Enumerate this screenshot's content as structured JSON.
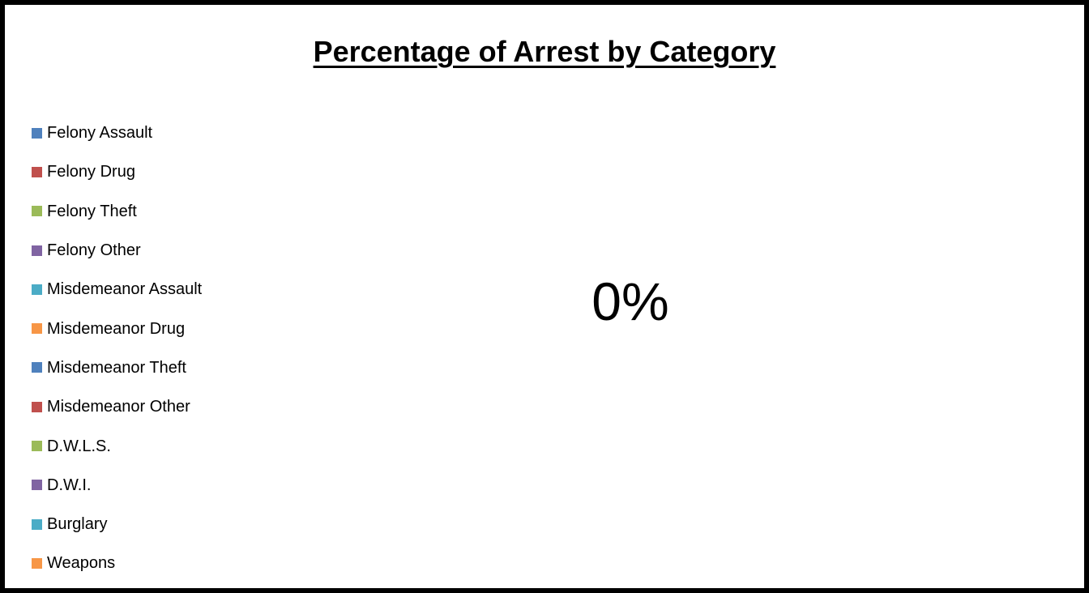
{
  "chart_data": {
    "type": "pie",
    "title": "Percentage of Arrest by Category",
    "categories": [
      "Felony Assault",
      "Felony Drug",
      "Felony Theft",
      "Felony Other",
      "Misdemeanor Assault",
      "Misdemeanor Drug",
      "Misdemeanor Theft",
      "Misdemeanor Other",
      "D.W.L.S.",
      "D.W.I.",
      "Burglary",
      "Weapons"
    ],
    "values": [
      0,
      0,
      0,
      0,
      0,
      0,
      0,
      0,
      0,
      0,
      0,
      0
    ],
    "colors": [
      "#4F81BD",
      "#C0504D",
      "#9BBB59",
      "#8064A2",
      "#4BACC6",
      "#F79646",
      "#4F81BD",
      "#C0504D",
      "#9BBB59",
      "#8064A2",
      "#4BACC6",
      "#F79646"
    ],
    "data_labels": [
      "0%"
    ],
    "legend_position": "left"
  }
}
